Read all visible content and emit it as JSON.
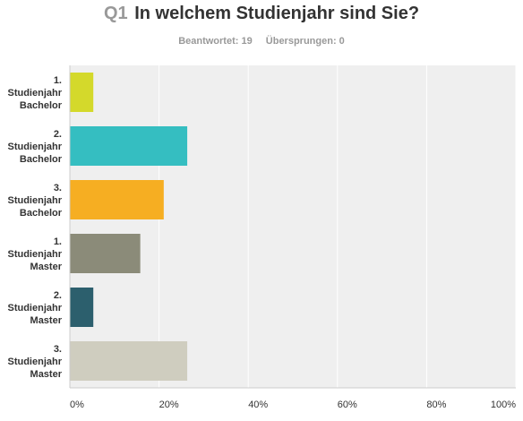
{
  "header": {
    "qnum": "Q1",
    "question": "In welchem Studienjahr sind Sie?",
    "answered": "Beantwortet: 19",
    "skipped": "Übersprungen: 0"
  },
  "chart_data": {
    "type": "bar",
    "orientation": "horizontal",
    "title": "In welchem Studienjahr sind Sie?",
    "categories": [
      [
        "1.",
        "Studienjahr",
        "Bachelor"
      ],
      [
        "2.",
        "Studienjahr",
        "Bachelor"
      ],
      [
        "3.",
        "Studienjahr",
        "Bachelor"
      ],
      [
        "1.",
        "Studienjahr",
        "Master"
      ],
      [
        "2.",
        "Studienjahr",
        "Master"
      ],
      [
        "3.",
        "Studienjahr",
        "Master"
      ]
    ],
    "values": [
      5.26,
      26.32,
      21.05,
      15.79,
      5.26,
      26.32
    ],
    "colors": [
      "#d4d92b",
      "#35bec1",
      "#f6ae22",
      "#8b8b79",
      "#2c5f6d",
      "#cfcdbf"
    ],
    "xlim": [
      0,
      100
    ],
    "ticks": [
      0,
      20,
      40,
      60,
      80,
      100
    ],
    "tick_labels": [
      "0%",
      "20%",
      "40%",
      "60%",
      "80%",
      "100%"
    ],
    "grid": true,
    "plot_background": "#efefef"
  }
}
